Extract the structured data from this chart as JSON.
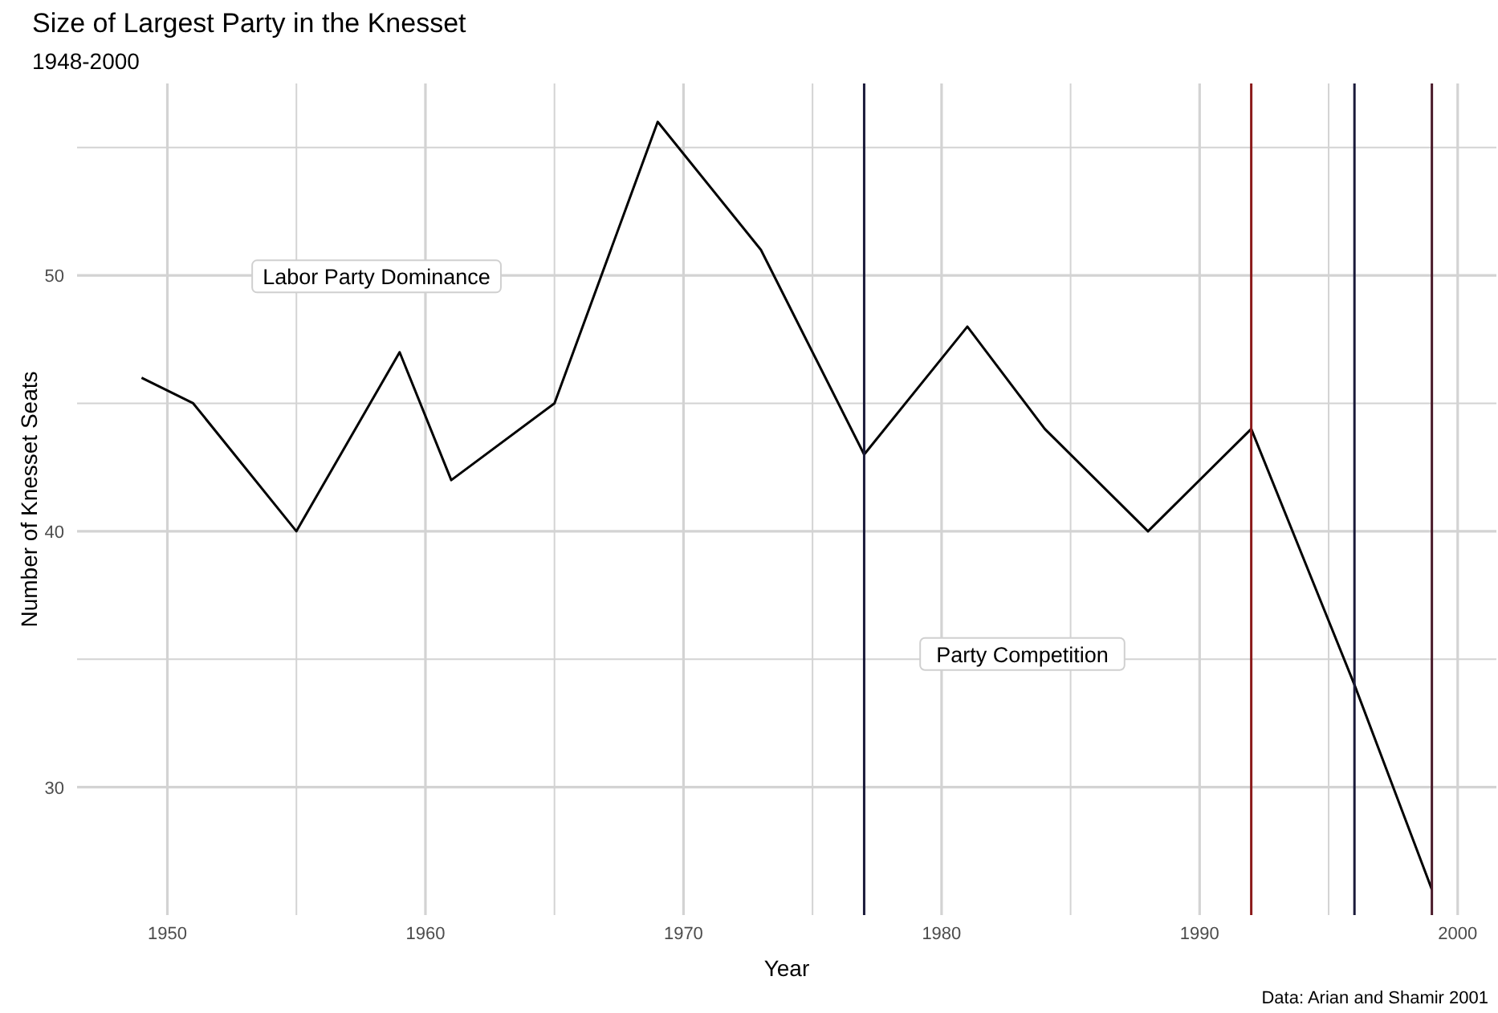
{
  "chart_data": {
    "type": "line",
    "title": "Size of Largest Party in the Knesset",
    "subtitle": "1948-2000",
    "xlabel": "Year",
    "ylabel": "Number of Knesset Seats",
    "x": [
      1949,
      1951,
      1955,
      1959,
      1961,
      1965,
      1969,
      1973,
      1977,
      1981,
      1984,
      1988,
      1992,
      1996,
      1999
    ],
    "series": [
      {
        "color": "#000000",
        "values": [
          46,
          45,
          40,
          47,
          42,
          45,
          56,
          51,
          43,
          48,
          44,
          40,
          44,
          34,
          26
        ]
      }
    ],
    "xlim": [
      1946.5,
      2001.5
    ],
    "ylim": [
      25,
      57.5
    ],
    "xticks": [
      1950,
      {
        "value": 1955,
        "label": null
      },
      1960,
      {
        "value": 1965,
        "label": null
      },
      1970,
      {
        "value": 1975,
        "label": null
      },
      1980,
      {
        "value": 1985,
        "label": null
      },
      1990,
      {
        "value": 1995,
        "label": null
      },
      2000
    ],
    "yticks": [
      30,
      {
        "value": 35,
        "label": null
      },
      40,
      {
        "value": 45,
        "label": null
      },
      50,
      {
        "value": 55,
        "label": null
      }
    ],
    "grid": true,
    "marker": "none",
    "line_style": "solid",
    "ref_lines": [
      {
        "axis": "x",
        "value": 1977,
        "color": "#1a1a3a"
      },
      {
        "axis": "x",
        "value": 1992,
        "color": "#8b1a1a"
      },
      {
        "axis": "x",
        "value": 1996,
        "color": "#1a1a3a"
      },
      {
        "axis": "x",
        "value": 1999,
        "color": "#4a1a2a"
      }
    ],
    "annotations": [
      "Labor Party Dominance",
      "Party Competition",
      "Data: Arian and Shamir 2001"
    ]
  }
}
